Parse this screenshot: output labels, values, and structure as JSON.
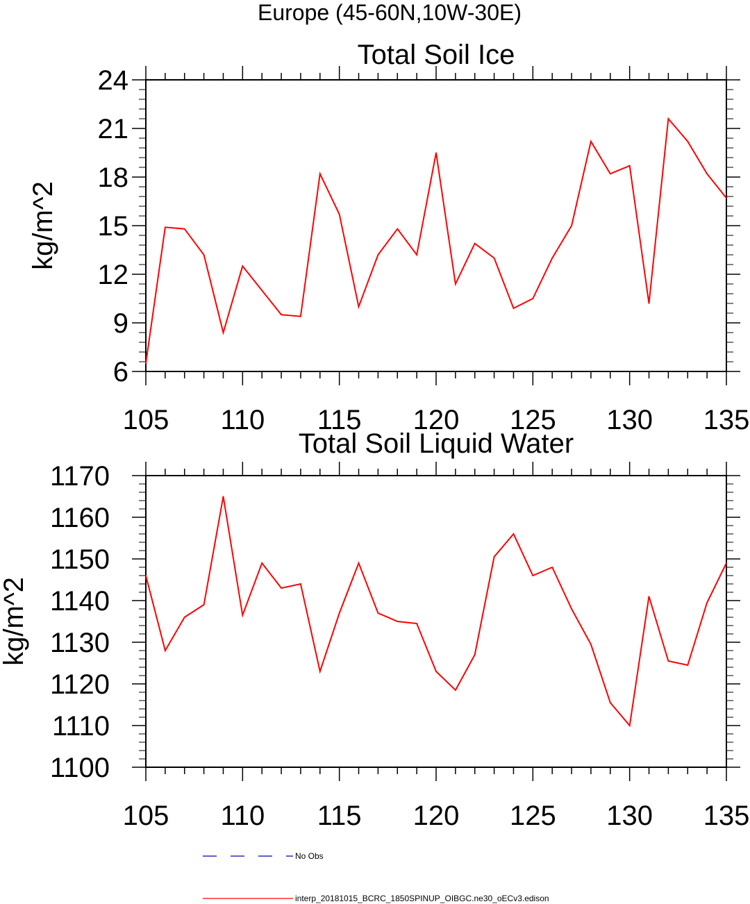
{
  "figure": {
    "main_title": "Europe (45-60N,10W-30E)"
  },
  "chart_data": [
    {
      "type": "line",
      "title": "Total Soil Ice",
      "ylabel": "kg/m^2",
      "xlabel": "",
      "xlim": [
        105,
        135
      ],
      "ylim": [
        6,
        24
      ],
      "xticks": [
        105,
        110,
        115,
        120,
        125,
        130,
        135
      ],
      "yticks": [
        6,
        9,
        12,
        15,
        18,
        21,
        24
      ],
      "x": [
        105,
        106,
        107,
        108,
        109,
        110,
        111,
        112,
        113,
        114,
        115,
        116,
        117,
        118,
        119,
        120,
        121,
        122,
        123,
        124,
        125,
        126,
        127,
        128,
        129,
        130,
        131,
        132,
        133,
        134,
        135
      ],
      "series": [
        {
          "name": "interp_20181015_BCRC_1850SPINUP_OIBGC.ne30_oECv3.edison",
          "color": "#ff0000",
          "values": [
            6.5,
            14.9,
            14.8,
            13.2,
            8.4,
            12.5,
            11.0,
            9.5,
            9.4,
            18.2,
            15.7,
            10.0,
            13.2,
            14.8,
            13.2,
            19.5,
            11.4,
            13.9,
            13.0,
            9.9,
            10.5,
            13.0,
            15.0,
            20.2,
            18.2,
            18.7,
            10.2,
            21.6,
            20.2,
            18.2,
            16.7
          ]
        }
      ]
    },
    {
      "type": "line",
      "title": "Total Soil Liquid Water",
      "ylabel": "kg/m^2",
      "xlabel": "",
      "xlim": [
        105,
        135
      ],
      "ylim": [
        1100,
        1170
      ],
      "xticks": [
        105,
        110,
        115,
        120,
        125,
        130,
        135
      ],
      "yticks": [
        1100,
        1110,
        1120,
        1130,
        1140,
        1150,
        1160,
        1170
      ],
      "x": [
        105,
        106,
        107,
        108,
        109,
        110,
        111,
        112,
        113,
        114,
        115,
        116,
        117,
        118,
        119,
        120,
        121,
        122,
        123,
        124,
        125,
        126,
        127,
        128,
        129,
        130,
        131,
        132,
        133,
        134,
        135
      ],
      "series": [
        {
          "name": "interp_20181015_BCRC_1850SPINUP_OIBGC.ne30_oECv3.edison",
          "color": "#ff0000",
          "values": [
            1146,
            1128,
            1136,
            1139,
            1165,
            1136.5,
            1149,
            1143,
            1144,
            1123,
            1137,
            1149,
            1137,
            1135,
            1134.5,
            1123,
            1118.5,
            1127,
            1150.5,
            1156,
            1146,
            1148,
            1138,
            1129.5,
            1115.5,
            1110,
            1141,
            1125.5,
            1124.5,
            1139.5,
            1149
          ]
        }
      ]
    }
  ],
  "legend": {
    "items": [
      {
        "label": "No Obs",
        "color": "#0000aa",
        "style": "dashed"
      },
      {
        "label": "interp_20181015_BCRC_1850SPINUP_OIBGC.ne30_oECv3.edison",
        "color": "#ff0000",
        "style": "solid"
      }
    ]
  }
}
